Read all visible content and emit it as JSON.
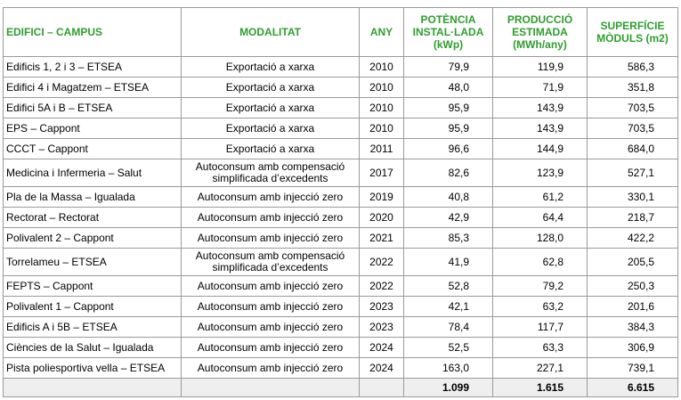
{
  "headers": {
    "campus": "EDIFICI – CAMPUS",
    "modalitat": "MODALITAT",
    "any": "ANY",
    "potencia": "POTÈNCIA INSTAL·LADA (kWp)",
    "produccio": "PRODUCCIÓ ESTIMADA (MWh/any)",
    "superficie": "SUPERFÍCIE MÒDULS (m2)"
  },
  "rows": [
    {
      "campus": "Edificis 1, 2 i 3 – ETSEA",
      "modalitat": "Exportació a xarxa",
      "any": "2010",
      "potencia": "79,9",
      "produccio": "119,9",
      "superficie": "586,3"
    },
    {
      "campus": "Edifici 4 i Magatzem – ETSEA",
      "modalitat": "Exportació a xarxa",
      "any": "2010",
      "potencia": "48,0",
      "produccio": "71,9",
      "superficie": "351,8"
    },
    {
      "campus": "Edifici 5A i B – ETSEA",
      "modalitat": "Exportació a xarxa",
      "any": "2010",
      "potencia": "95,9",
      "produccio": "143,9",
      "superficie": "703,5"
    },
    {
      "campus": "EPS – Cappont",
      "modalitat": "Exportació a xarxa",
      "any": "2010",
      "potencia": "95,9",
      "produccio": "143,9",
      "superficie": "703,5"
    },
    {
      "campus": "CCCT – Cappont",
      "modalitat": "Exportació a xarxa",
      "any": "2011",
      "potencia": "96,6",
      "produccio": "144,9",
      "superficie": "684,0"
    },
    {
      "campus": "Medicina i Infermeria – Salut",
      "modalitat": "Autoconsum amb compensació simplificada d’excedents",
      "any": "2017",
      "potencia": "82,6",
      "produccio": "123,9",
      "superficie": "527,1"
    },
    {
      "campus": "Pla de la Massa – Igualada",
      "modalitat": "Autoconsum amb injecció zero",
      "any": "2019",
      "potencia": "40,8",
      "produccio": "61,2",
      "superficie": "330,1"
    },
    {
      "campus": "Rectorat – Rectorat",
      "modalitat": "Autoconsum amb injecció zero",
      "any": "2020",
      "potencia": "42,9",
      "produccio": "64,4",
      "superficie": "218,7"
    },
    {
      "campus": "Polivalent 2 – Cappont",
      "modalitat": "Autoconsum amb injecció zero",
      "any": "2021",
      "potencia": "85,3",
      "produccio": "128,0",
      "superficie": "422,2"
    },
    {
      "campus": "Torrelameu – ETSEA",
      "modalitat": "Autoconsum amb compensació simplificada d’excedents",
      "any": "2022",
      "potencia": "41,9",
      "produccio": "62,8",
      "superficie": "205,5"
    },
    {
      "campus": "FEPTS – Cappont",
      "modalitat": "Autoconsum amb injecció zero",
      "any": "2022",
      "potencia": "52,8",
      "produccio": "79,2",
      "superficie": "250,3"
    },
    {
      "campus": "Polivalent 1 – Cappont",
      "modalitat": "Autoconsum amb injecció zero",
      "any": "2023",
      "potencia": "42,1",
      "produccio": "63,2",
      "superficie": "201,6"
    },
    {
      "campus": "Edificis A i 5B – ETSEA",
      "modalitat": "Autoconsum amb injecció zero",
      "any": "2023",
      "potencia": "78,4",
      "produccio": "117,7",
      "superficie": "384,3"
    },
    {
      "campus": "Ciències de la Salut – Igualada",
      "modalitat": "Autoconsum amb injecció zero",
      "any": "2024",
      "potencia": "52,5",
      "produccio": "63,3",
      "superficie": "306,9"
    },
    {
      "campus": "Pista poliesportiva vella – ETSEA",
      "modalitat": "Autoconsum amb injecció zero",
      "any": "2024",
      "potencia": "163,0",
      "produccio": "227,1",
      "superficie": "739,1"
    }
  ],
  "totals": {
    "potencia": "1.099",
    "produccio": "1.615",
    "superficie": "6.615"
  },
  "colors": {
    "header_text": "#2e9e2e",
    "border": "#9a9a9a",
    "total_row_bg": "#efefef"
  }
}
